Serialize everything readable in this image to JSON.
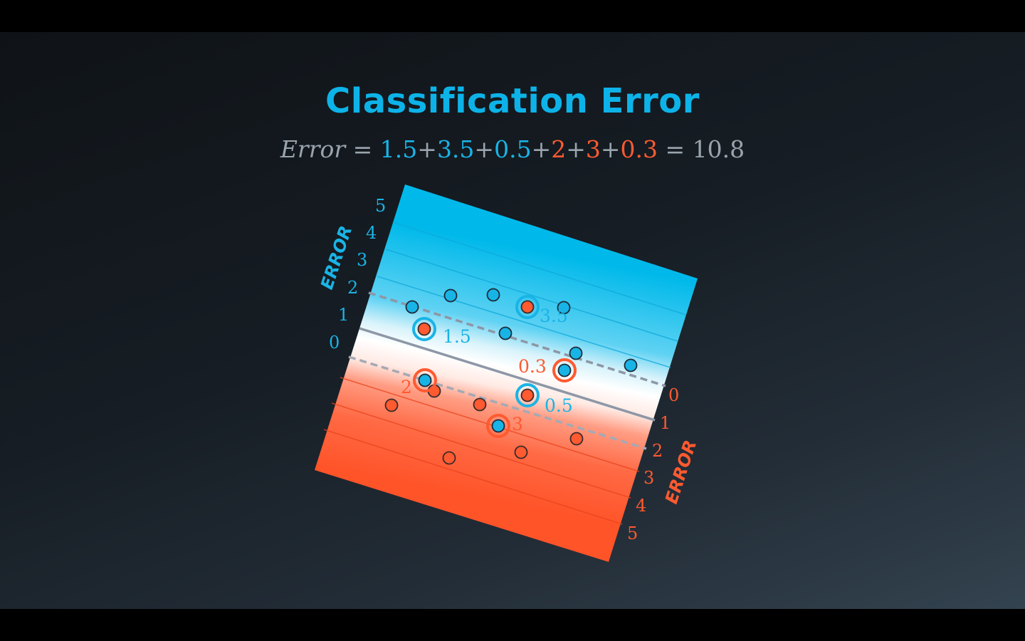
{
  "title": "Classification Error",
  "equation": {
    "lhs": "Error",
    "equals": "=",
    "plus": "+",
    "terms": [
      {
        "text": "1.5",
        "color": "blue"
      },
      {
        "text": "3.5",
        "color": "blue"
      },
      {
        "text": "0.5",
        "color": "blue"
      },
      {
        "text": "2",
        "color": "red"
      },
      {
        "text": "3",
        "color": "red"
      },
      {
        "text": "0.3",
        "color": "red"
      }
    ],
    "total": "10.8"
  },
  "axes": {
    "blue_word": "ERROR",
    "red_word": "ERROR",
    "blue_ticks": [
      "0",
      "1",
      "2",
      "3",
      "4",
      "5"
    ],
    "red_ticks": [
      "0",
      "1",
      "2",
      "3",
      "4",
      "5"
    ]
  },
  "colors": {
    "blue": "#19b4e6",
    "red": "#ff5a30",
    "grey": "#9aa4ae",
    "title": "#0db3e8"
  },
  "errors": [
    {
      "label": "1.5",
      "point_class": "red",
      "ring": "blue"
    },
    {
      "label": "3.5",
      "point_class": "red",
      "ring": "blue"
    },
    {
      "label": "0.5",
      "point_class": "red",
      "ring": "blue"
    },
    {
      "label": "2",
      "point_class": "blue",
      "ring": "red"
    },
    {
      "label": "3",
      "point_class": "blue",
      "ring": "red"
    },
    {
      "label": "0.3",
      "point_class": "blue",
      "ring": "red"
    }
  ]
}
